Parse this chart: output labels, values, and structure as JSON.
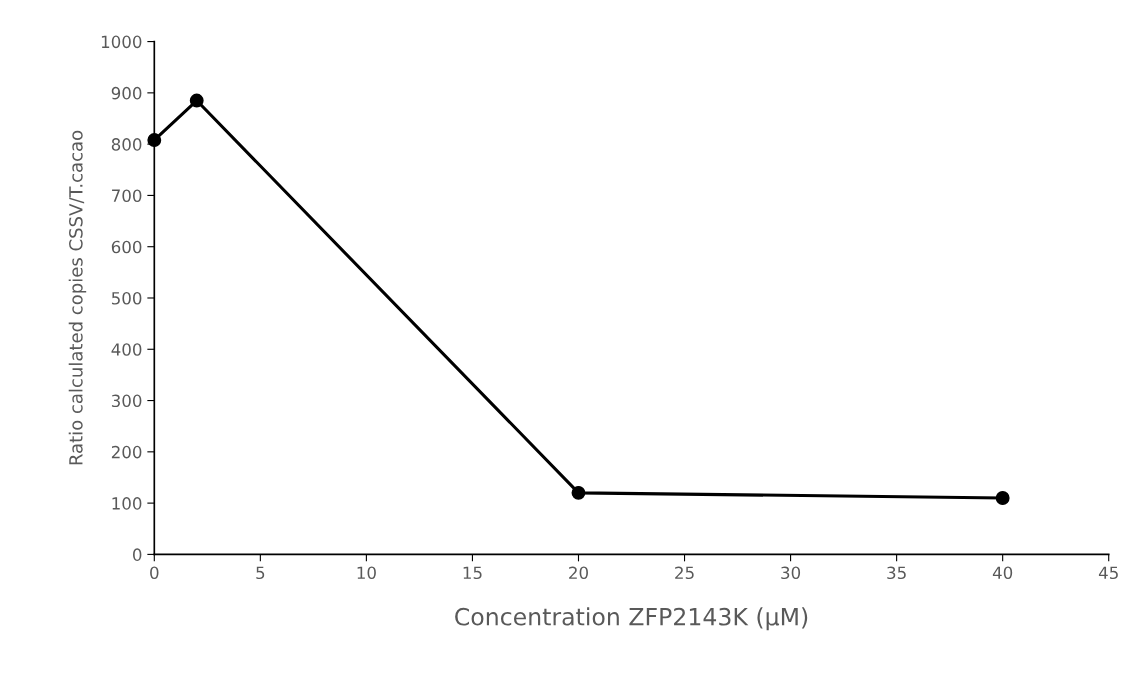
{
  "chart_data": {
    "type": "line",
    "xlabel": "Concentration ZFP2143K (µM)",
    "ylabel": "Ratio calculated copies CSSV/T.cacao",
    "x": [
      0,
      2,
      20,
      40
    ],
    "series": [
      {
        "color": "#000000",
        "values": [
          808,
          885,
          120,
          110
        ]
      }
    ],
    "marker": "circle",
    "line_style": "solid",
    "xlim": [
      0,
      45
    ],
    "xticks": [
      0,
      5,
      10,
      15,
      20,
      25,
      30,
      35,
      40,
      45
    ],
    "ylim": [
      0,
      1000
    ],
    "yticks": [
      0,
      100,
      200,
      300,
      400,
      500,
      600,
      700,
      800,
      900,
      1000
    ],
    "grid": false,
    "legend": false
  }
}
